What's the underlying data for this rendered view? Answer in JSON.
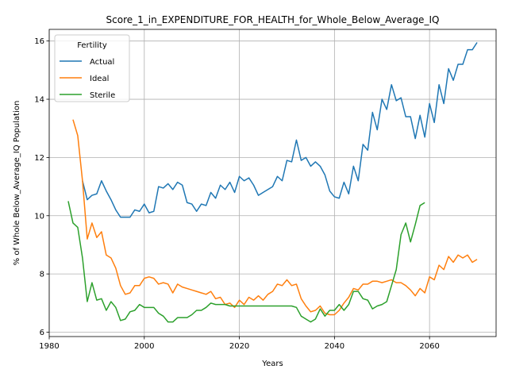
{
  "chart_data": {
    "type": "line",
    "title": "Score_1_in_EXPENDITURE_FOR_HEALTH_for_Whole_Below_Average_IQ",
    "xlabel": "Years",
    "ylabel": "% of Whole Below_Average_IQ Population",
    "xlim": [
      1980,
      2074
    ],
    "ylim": [
      5.85,
      16.4
    ],
    "xticks": [
      1980,
      2000,
      2020,
      2040,
      2060
    ],
    "yticks": [
      6,
      8,
      10,
      12,
      14,
      16
    ],
    "grid": true,
    "legend": {
      "title": "Fertility",
      "placement": "top-left"
    },
    "series": [
      {
        "name": "Actual",
        "color": "#1f77b4",
        "x": [
          1987,
          1988,
          1989,
          1990,
          1991,
          1992,
          1993,
          1994,
          1995,
          1996,
          1997,
          1998,
          1999,
          2000,
          2001,
          2002,
          2003,
          2004,
          2005,
          2006,
          2007,
          2008,
          2009,
          2010,
          2011,
          2012,
          2013,
          2014,
          2015,
          2016,
          2017,
          2018,
          2019,
          2020,
          2021,
          2022,
          2023,
          2024,
          2025,
          2026,
          2027,
          2028,
          2029,
          2030,
          2031,
          2032,
          2033,
          2034,
          2035,
          2036,
          2037,
          2038,
          2039,
          2040,
          2041,
          2042,
          2043,
          2044,
          2045,
          2046,
          2047,
          2048,
          2049,
          2050,
          2051,
          2052,
          2053,
          2054,
          2055,
          2056,
          2057,
          2058,
          2059,
          2060,
          2061,
          2062,
          2063,
          2064,
          2065,
          2066,
          2067,
          2068,
          2069,
          2070
        ],
        "values": [
          11.2,
          10.55,
          10.7,
          10.75,
          11.2,
          10.85,
          10.55,
          10.2,
          9.95,
          9.95,
          9.95,
          10.2,
          10.15,
          10.4,
          10.1,
          10.15,
          11.0,
          10.95,
          11.1,
          10.9,
          11.15,
          11.05,
          10.45,
          10.4,
          10.15,
          10.4,
          10.35,
          10.8,
          10.6,
          11.05,
          10.9,
          11.15,
          10.8,
          11.35,
          11.2,
          11.3,
          11.05,
          10.7,
          10.8,
          10.9,
          11.0,
          11.35,
          11.2,
          11.9,
          11.85,
          12.6,
          11.9,
          12.0,
          11.7,
          11.85,
          11.7,
          11.4,
          10.85,
          10.65,
          10.6,
          11.15,
          10.75,
          11.7,
          11.2,
          12.45,
          12.25,
          13.55,
          12.95,
          14.0,
          13.65,
          14.5,
          13.95,
          14.05,
          13.4,
          13.4,
          12.65,
          13.45,
          12.7,
          13.85,
          13.2,
          14.5,
          13.85,
          15.05,
          14.65,
          15.2,
          15.2,
          15.7,
          15.7,
          15.95
        ]
      },
      {
        "name": "Ideal",
        "color": "#ff7f0e",
        "x": [
          1985,
          1986,
          1987,
          1988,
          1989,
          1990,
          1991,
          1992,
          1993,
          1994,
          1995,
          1996,
          1997,
          1998,
          1999,
          2000,
          2001,
          2002,
          2003,
          2004,
          2005,
          2006,
          2007,
          2008,
          2009,
          2010,
          2011,
          2012,
          2013,
          2014,
          2015,
          2016,
          2017,
          2018,
          2019,
          2020,
          2021,
          2022,
          2023,
          2024,
          2025,
          2026,
          2027,
          2028,
          2029,
          2030,
          2031,
          2032,
          2033,
          2034,
          2035,
          2036,
          2037,
          2038,
          2039,
          2040,
          2041,
          2042,
          2043,
          2044,
          2045,
          2046,
          2047,
          2048,
          2049,
          2050,
          2051,
          2052,
          2053,
          2054,
          2055,
          2056,
          2057,
          2058,
          2059,
          2060,
          2061,
          2062,
          2063,
          2064,
          2065,
          2066,
          2067,
          2068,
          2069,
          2070
        ],
        "values": [
          13.3,
          12.75,
          11.2,
          9.2,
          9.75,
          9.25,
          9.45,
          8.65,
          8.55,
          8.2,
          7.6,
          7.3,
          7.35,
          7.6,
          7.6,
          7.85,
          7.9,
          7.85,
          7.65,
          7.7,
          7.65,
          7.35,
          7.65,
          7.55,
          7.5,
          7.45,
          7.4,
          7.35,
          7.3,
          7.4,
          7.15,
          7.2,
          6.95,
          7.0,
          6.85,
          7.1,
          6.95,
          7.2,
          7.1,
          7.25,
          7.1,
          7.3,
          7.4,
          7.65,
          7.6,
          7.8,
          7.6,
          7.65,
          7.15,
          6.9,
          6.7,
          6.75,
          6.9,
          6.65,
          6.6,
          6.6,
          6.75,
          7.0,
          7.2,
          7.5,
          7.45,
          7.65,
          7.65,
          7.75,
          7.75,
          7.7,
          7.75,
          7.8,
          7.7,
          7.7,
          7.6,
          7.45,
          7.25,
          7.5,
          7.35,
          7.9,
          7.8,
          8.3,
          8.15,
          8.6,
          8.4,
          8.65,
          8.55,
          8.65,
          8.4,
          8.5
        ]
      },
      {
        "name": "Sterile",
        "color": "#2ca02c",
        "x": [
          1984,
          1985,
          1986,
          1987,
          1988,
          1989,
          1990,
          1991,
          1992,
          1993,
          1994,
          1995,
          1996,
          1997,
          1998,
          1999,
          2000,
          2001,
          2002,
          2003,
          2004,
          2005,
          2006,
          2007,
          2008,
          2009,
          2010,
          2011,
          2012,
          2013,
          2014,
          2015,
          2016,
          2017,
          2018,
          2019,
          2020,
          2021,
          2022,
          2023,
          2024,
          2025,
          2026,
          2027,
          2028,
          2029,
          2030,
          2031,
          2032,
          2033,
          2034,
          2035,
          2036,
          2037,
          2038,
          2039,
          2040,
          2041,
          2042,
          2043,
          2044,
          2045,
          2046,
          2047,
          2048,
          2049,
          2050,
          2051,
          2052,
          2053,
          2054,
          2055,
          2056,
          2057,
          2058,
          2059
        ],
        "values": [
          10.5,
          9.75,
          9.6,
          8.55,
          7.05,
          7.7,
          7.1,
          7.15,
          6.75,
          7.05,
          6.85,
          6.4,
          6.45,
          6.7,
          6.75,
          6.95,
          6.85,
          6.85,
          6.85,
          6.65,
          6.55,
          6.35,
          6.35,
          6.5,
          6.5,
          6.5,
          6.6,
          6.75,
          6.75,
          6.85,
          7.0,
          6.95,
          6.95,
          6.95,
          6.9,
          6.9,
          6.9,
          6.9,
          6.9,
          6.9,
          6.9,
          6.9,
          6.9,
          6.9,
          6.9,
          6.9,
          6.9,
          6.9,
          6.85,
          6.55,
          6.45,
          6.35,
          6.45,
          6.8,
          6.55,
          6.75,
          6.75,
          6.95,
          6.75,
          6.95,
          7.4,
          7.4,
          7.15,
          7.1,
          6.8,
          6.9,
          6.95,
          7.05,
          7.6,
          8.15,
          9.35,
          9.75,
          9.1,
          9.7,
          10.35,
          10.45
        ]
      }
    ]
  }
}
